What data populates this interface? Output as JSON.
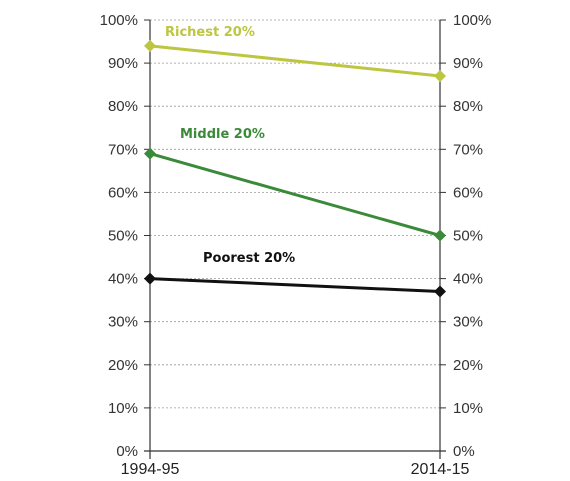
{
  "chart_data": {
    "type": "line",
    "x": [
      "1994-95",
      "2014-15"
    ],
    "series": [
      {
        "name": "Richest 20%",
        "values": [
          94,
          87
        ],
        "color": "#bcc640"
      },
      {
        "name": "Middle 20%",
        "values": [
          69,
          50
        ],
        "color": "#3a8a3a"
      },
      {
        "name": "Poorest 20%",
        "values": [
          40,
          37
        ],
        "color": "#111111"
      }
    ],
    "ylim": [
      0,
      100
    ],
    "yticks": [
      "0%",
      "10%",
      "20%",
      "30%",
      "40%",
      "50%",
      "60%",
      "70%",
      "80%",
      "90%",
      "100%"
    ],
    "right_axis": true,
    "grid": "horizontal dashed",
    "legend": "inline labels above lines"
  }
}
